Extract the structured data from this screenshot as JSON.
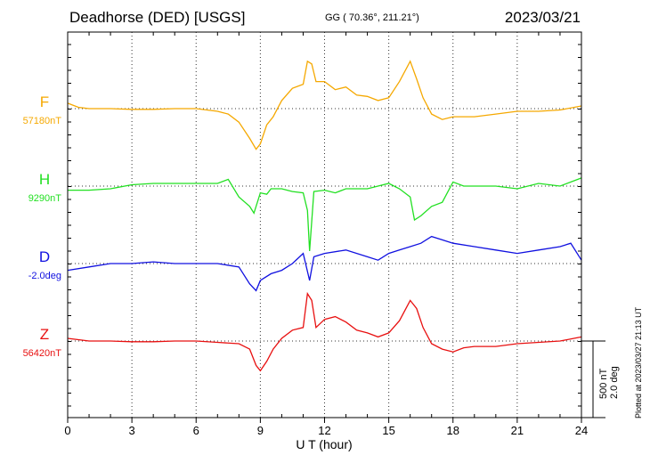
{
  "header": {
    "station": "Deadhorse (DED)  [USGS]",
    "coordinates": "GG ( 70.36°, 211.21°)",
    "date": "2023/03/21"
  },
  "footer_note": "Plotted at 2023/03/27 21:13 UT",
  "scale": {
    "nt": "500 nT",
    "deg": "2.0 deg"
  },
  "chart_data": {
    "type": "line",
    "xlabel": "U T (hour)",
    "xlim": [
      0,
      24
    ],
    "x_ticks": [
      "0",
      "3",
      "6",
      "9",
      "12",
      "15",
      "18",
      "21",
      "24"
    ],
    "grid": true,
    "series": [
      {
        "name": "F",
        "baseline_label": "57180nT",
        "color": "#f5a800",
        "x": [
          0,
          0.5,
          1,
          2,
          3,
          4,
          5,
          6,
          7,
          7.5,
          8,
          8.5,
          8.8,
          9,
          9.3,
          9.6,
          10,
          10.5,
          11,
          11.2,
          11.4,
          11.6,
          12,
          12.5,
          13,
          13.5,
          14,
          14.5,
          15,
          15.5,
          16,
          16.3,
          16.6,
          17,
          17.5,
          18,
          19,
          20,
          21,
          22,
          23,
          24
        ],
        "y": [
          40,
          10,
          0,
          0,
          -5,
          -5,
          0,
          0,
          -20,
          -40,
          -100,
          -220,
          -300,
          -260,
          -120,
          -60,
          60,
          150,
          180,
          350,
          330,
          200,
          200,
          140,
          160,
          100,
          90,
          60,
          80,
          200,
          350,
          220,
          80,
          -40,
          -80,
          -60,
          -60,
          -40,
          -20,
          -20,
          -10,
          20
        ]
      },
      {
        "name": "H",
        "baseline_label": "9290nT",
        "color": "#22e022",
        "x": [
          0,
          1,
          2,
          3,
          4,
          5,
          6,
          7,
          7.5,
          8,
          8.5,
          8.7,
          9,
          9.3,
          9.5,
          10,
          10.5,
          11,
          11.2,
          11.3,
          11.5,
          12,
          12.5,
          13,
          14,
          15,
          15.5,
          16,
          16.2,
          16.5,
          17,
          17.5,
          18,
          18.5,
          19,
          20,
          21,
          22,
          23,
          24
        ],
        "y": [
          -30,
          -30,
          -20,
          10,
          20,
          20,
          20,
          20,
          50,
          -80,
          -150,
          -200,
          -50,
          -60,
          -20,
          -20,
          -40,
          -50,
          -180,
          -480,
          -40,
          -30,
          -50,
          -20,
          -20,
          20,
          -20,
          -80,
          -250,
          -220,
          -150,
          -120,
          30,
          0,
          0,
          0,
          -20,
          20,
          0,
          60
        ]
      },
      {
        "name": "D",
        "baseline_label": "-2.0deg",
        "color": "#1010e0",
        "x": [
          0,
          1,
          2,
          3,
          4,
          5,
          6,
          7,
          8,
          8.5,
          8.8,
          9,
          9.5,
          10,
          10.5,
          11,
          11.3,
          11.5,
          12,
          13,
          14,
          14.5,
          15,
          15.5,
          16,
          16.5,
          17,
          17.5,
          18,
          19,
          20,
          21,
          22,
          23,
          23.5,
          24
        ],
        "y": [
          -0.2,
          -0.1,
          0,
          0,
          0.05,
          0,
          0,
          0,
          -0.1,
          -0.6,
          -0.8,
          -0.5,
          -0.3,
          -0.2,
          0,
          0.3,
          -0.5,
          0.2,
          0.3,
          0.4,
          0.2,
          0.1,
          0.3,
          0.4,
          0.5,
          0.6,
          0.8,
          0.7,
          0.6,
          0.5,
          0.4,
          0.3,
          0.4,
          0.5,
          0.6,
          0.1
        ]
      },
      {
        "name": "Z",
        "baseline_label": "56420nT",
        "color": "#e81010",
        "x": [
          0,
          0.5,
          1,
          2,
          3,
          4,
          5,
          6,
          7,
          8,
          8.5,
          8.8,
          9,
          9.3,
          9.6,
          10,
          10.5,
          11,
          11.2,
          11.4,
          11.6,
          12,
          12.5,
          13,
          13.5,
          14,
          14.5,
          15,
          15.5,
          16,
          16.3,
          16.6,
          17,
          17.5,
          18,
          18.5,
          19,
          20,
          21,
          22,
          23,
          24
        ],
        "y": [
          20,
          10,
          0,
          0,
          -5,
          -5,
          0,
          0,
          -10,
          -20,
          -60,
          -180,
          -220,
          -150,
          -60,
          20,
          80,
          100,
          350,
          300,
          100,
          160,
          180,
          140,
          80,
          60,
          30,
          60,
          150,
          300,
          240,
          100,
          -20,
          -60,
          -80,
          -50,
          -40,
          -40,
          -20,
          -10,
          0,
          30
        ]
      }
    ]
  }
}
